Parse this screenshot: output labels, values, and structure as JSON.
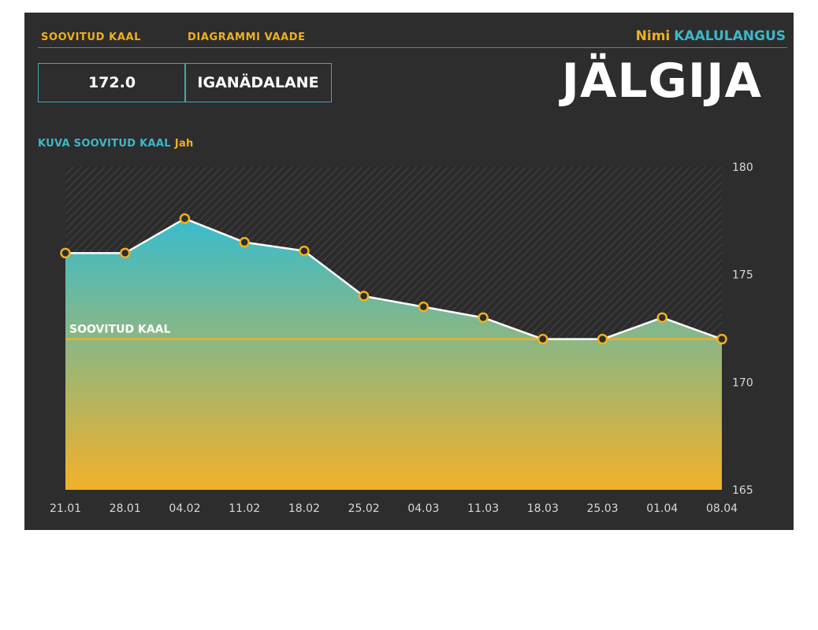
{
  "header": {
    "target_weight_label": "SOOVITUD KAAL",
    "chart_view_label": "DIAGRAMMI VAADE",
    "name_label": "Nimi",
    "name_value": "KAALULANGUS",
    "title": "JÄLGIJA"
  },
  "inputs": {
    "target_weight_value": "172.0",
    "chart_view_value": "IGANÄDALANE"
  },
  "toggle": {
    "show_target_label": "KUVA SOOVITUD KAAL",
    "show_target_value": "Jah"
  },
  "colors": {
    "panel": "#2d2d2d",
    "accent_orange": "#f0b020",
    "accent_teal": "#3cb8c8",
    "line": "#ffffff",
    "area_top": "#38bccd",
    "area_bottom": "#f2b12a"
  },
  "chart_data": {
    "type": "area",
    "x": [
      "21.01",
      "28.01",
      "04.02",
      "11.02",
      "18.02",
      "25.02",
      "04.03",
      "11.03",
      "18.03",
      "25.03",
      "01.04",
      "08.04"
    ],
    "series": [
      {
        "values": [
          176.0,
          176.0,
          177.6,
          176.5,
          176.1,
          174.0,
          173.5,
          173.0,
          172.0,
          172.0,
          173.0,
          172.0
        ]
      }
    ],
    "target": {
      "label": "SOOVITUD KAAL",
      "value": 172.0
    },
    "ylim": [
      165,
      180
    ],
    "yticks": [
      165,
      170,
      175,
      180
    ],
    "y_axis_side": "right",
    "grid": false
  }
}
